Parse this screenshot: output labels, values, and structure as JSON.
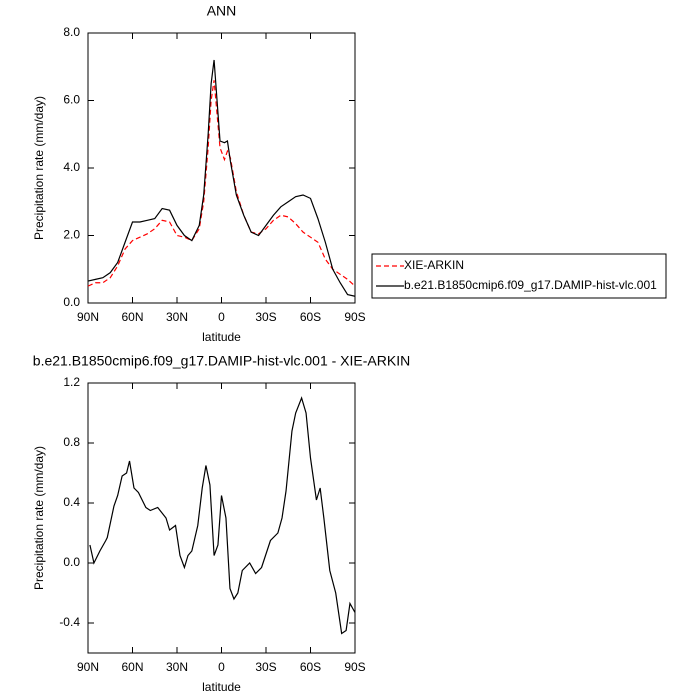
{
  "chart_data": [
    {
      "type": "line",
      "title": "ANN",
      "x_label": "latitude",
      "y_label": "Precipitation rate (mm/day)",
      "x": [
        90,
        85,
        80,
        75,
        70,
        65,
        60,
        55,
        50,
        45,
        40,
        35,
        30,
        25,
        20,
        15,
        12,
        9,
        7,
        5,
        3,
        1,
        -2,
        -4,
        -6,
        -10,
        -15,
        -20,
        -25,
        -30,
        -35,
        -40,
        -45,
        -50,
        -55,
        -60,
        -65,
        -70,
        -75,
        -80,
        -85,
        -90
      ],
      "series": [
        {
          "name": "XIE-ARKIN",
          "color": "#ff0000",
          "style": "dashed",
          "values": [
            0.5,
            0.6,
            0.6,
            0.75,
            1.1,
            1.6,
            1.85,
            1.95,
            2.05,
            2.2,
            2.45,
            2.4,
            2.0,
            1.95,
            1.85,
            2.2,
            3.0,
            4.6,
            6.0,
            6.6,
            5.6,
            4.6,
            4.25,
            4.5,
            4.3,
            3.3,
            2.6,
            2.1,
            2.05,
            2.2,
            2.45,
            2.6,
            2.55,
            2.35,
            2.1,
            1.95,
            1.8,
            1.3,
            1.0,
            0.85,
            0.7,
            0.5
          ]
        },
        {
          "name": "b.e21.B1850cmip6.f09_g17.DAMIP-hist-vlc.001",
          "color": "#000000",
          "style": "solid",
          "values": [
            0.65,
            0.7,
            0.75,
            0.9,
            1.2,
            1.8,
            2.4,
            2.4,
            2.45,
            2.5,
            2.8,
            2.75,
            2.3,
            2.0,
            1.85,
            2.3,
            3.2,
            5.0,
            6.5,
            7.2,
            6.0,
            4.8,
            4.75,
            4.8,
            4.2,
            3.2,
            2.6,
            2.1,
            2.0,
            2.3,
            2.6,
            2.85,
            3.0,
            3.15,
            3.2,
            3.1,
            2.5,
            1.8,
            1.0,
            0.6,
            0.25,
            0.2
          ]
        }
      ],
      "xlim": [
        90,
        -90
      ],
      "xticks": [
        {
          "value": 90,
          "label": "90N"
        },
        {
          "value": 60,
          "label": "60N"
        },
        {
          "value": 30,
          "label": "30N"
        },
        0,
        {
          "value": -30,
          "label": "30S"
        },
        {
          "value": -60,
          "label": "60S"
        },
        {
          "value": -90,
          "label": "90S"
        }
      ],
      "ylim": [
        0,
        8
      ],
      "yticks": [
        {
          "value": 0,
          "label": "0.0"
        },
        {
          "value": 2,
          "label": "2.0"
        },
        {
          "value": 4,
          "label": "4.0"
        },
        {
          "value": 6,
          "label": "6.0"
        },
        {
          "value": 8,
          "label": "8.0"
        }
      ],
      "legend": "right"
    },
    {
      "type": "line",
      "title": "b.e21.B1850cmip6.f09_g17.DAMIP-hist-vlc.001 - XIE-ARKIN",
      "x_label": "latitude",
      "y_label": "Precipitation rate (mm/day)",
      "x": [
        88.7,
        86,
        82,
        78,
        77,
        72.5,
        70,
        67,
        64,
        62,
        59,
        56,
        51,
        48,
        43,
        37.4,
        35,
        31,
        28,
        25,
        22.6,
        20,
        16,
        13,
        10.5,
        7.8,
        5,
        2.4,
        0,
        -3,
        -5.7,
        -8.4,
        -11,
        -14,
        -19,
        -23,
        -27,
        -33,
        -38,
        -40.8,
        -43.5,
        -47.5,
        -50,
        -54,
        -57,
        -60,
        -64,
        -66.5,
        -69,
        -73,
        -77,
        -81,
        -84,
        -86.6,
        -90
      ],
      "color": "#000000",
      "values": [
        0.12,
        0.0,
        0.08,
        0.15,
        0.17,
        0.38,
        0.45,
        0.58,
        0.6,
        0.68,
        0.5,
        0.47,
        0.37,
        0.35,
        0.37,
        0.3,
        0.22,
        0.25,
        0.05,
        -0.03,
        0.05,
        0.08,
        0.25,
        0.5,
        0.65,
        0.52,
        0.05,
        0.12,
        0.45,
        0.3,
        -0.17,
        -0.24,
        -0.2,
        -0.05,
        0.0,
        -0.07,
        -0.03,
        0.15,
        0.2,
        0.3,
        0.48,
        0.88,
        1.0,
        1.1,
        1.0,
        0.7,
        0.42,
        0.5,
        0.3,
        -0.05,
        -0.2,
        -0.47,
        -0.45,
        -0.27,
        -0.33
      ],
      "xlim": [
        90,
        -90
      ],
      "xticks": [
        {
          "value": 90,
          "label": "90N"
        },
        {
          "value": 60,
          "label": "60N"
        },
        {
          "value": 30,
          "label": "30N"
        },
        0,
        {
          "value": -30,
          "label": "30S"
        },
        {
          "value": -60,
          "label": "60S"
        },
        {
          "value": -90,
          "label": "90S"
        }
      ],
      "ylim": [
        -0.6,
        1.2
      ],
      "yticks": [
        -0.4,
        {
          "value": 0,
          "label": "0.0"
        },
        0.4,
        0.8,
        1.2
      ]
    }
  ]
}
